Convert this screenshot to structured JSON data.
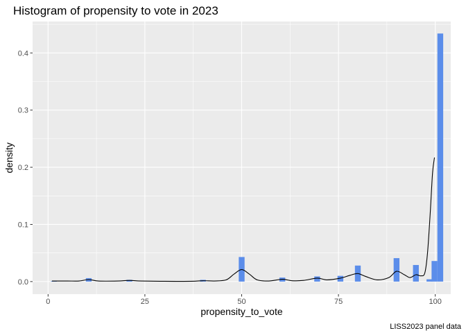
{
  "chart_data": {
    "type": "bar",
    "title": "Histogram of propensity to vote in 2023",
    "xlabel": "propensity_to_vote",
    "ylabel": "density",
    "caption": "LISS2023 panel data",
    "xlim": [
      -4,
      104
    ],
    "ylim": [
      -0.022,
      0.455
    ],
    "x_ticks": [
      0,
      25,
      50,
      75,
      100
    ],
    "y_ticks": [
      0.0,
      0.1,
      0.2,
      0.3,
      0.4
    ],
    "y_tick_labels": [
      "0.0",
      "0.1",
      "0.2",
      "0.3",
      "0.4"
    ],
    "grid": true,
    "bin_width": 1.5,
    "bars": [
      {
        "x": 1.5,
        "density": 0.001
      },
      {
        "x": 10.5,
        "density": 0.006
      },
      {
        "x": 21,
        "density": 0.003
      },
      {
        "x": 40,
        "density": 0.003
      },
      {
        "x": 50,
        "density": 0.043
      },
      {
        "x": 60.5,
        "density": 0.007
      },
      {
        "x": 69.5,
        "density": 0.009
      },
      {
        "x": 75.5,
        "density": 0.01
      },
      {
        "x": 80,
        "density": 0.028
      },
      {
        "x": 90,
        "density": 0.041
      },
      {
        "x": 95,
        "density": 0.029
      },
      {
        "x": 98.5,
        "density": 0.004
      },
      {
        "x": 99.8,
        "density": 0.036
      },
      {
        "x": 101.3,
        "density": 0.434
      }
    ],
    "density_curve": [
      [
        1,
        0.001
      ],
      [
        5,
        0.001
      ],
      [
        8,
        0.001
      ],
      [
        10.5,
        0.0035
      ],
      [
        13,
        0.001
      ],
      [
        18,
        0.001
      ],
      [
        21,
        0.002
      ],
      [
        24,
        0.001
      ],
      [
        30,
        0.0005
      ],
      [
        37,
        0.0005
      ],
      [
        40,
        0.0015
      ],
      [
        43,
        0.001
      ],
      [
        46,
        0.003
      ],
      [
        48,
        0.013
      ],
      [
        50,
        0.021
      ],
      [
        52,
        0.013
      ],
      [
        54,
        0.003
      ],
      [
        57,
        0.001
      ],
      [
        60.5,
        0.004
      ],
      [
        63,
        0.0015
      ],
      [
        66,
        0.002
      ],
      [
        69.5,
        0.006
      ],
      [
        72,
        0.003
      ],
      [
        75.5,
        0.006
      ],
      [
        78,
        0.011
      ],
      [
        80,
        0.014
      ],
      [
        82,
        0.009
      ],
      [
        85,
        0.003
      ],
      [
        88,
        0.007
      ],
      [
        90,
        0.018
      ],
      [
        92,
        0.012
      ],
      [
        93.5,
        0.007
      ],
      [
        95,
        0.012
      ],
      [
        96.3,
        0.01
      ],
      [
        97.3,
        0.015
      ],
      [
        98,
        0.05
      ],
      [
        98.7,
        0.12
      ],
      [
        99.3,
        0.19
      ],
      [
        99.8,
        0.217
      ]
    ],
    "colors": {
      "bar_fill": "#5b8dea",
      "panel_bg": "#ebebeb",
      "grid": "#ffffff",
      "curve": "#000000"
    }
  }
}
